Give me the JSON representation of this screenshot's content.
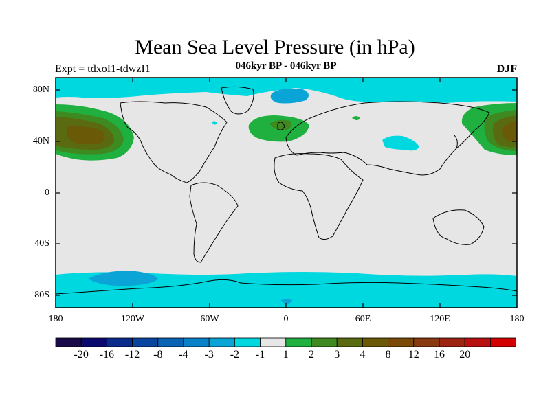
{
  "title": "Mean Sea Level Pressure (in hPa)",
  "subtitle": "046kyr BP - 046kyr BP",
  "experiment_label": "Expt = tdxoI1-tdwzI1",
  "season": "DJF",
  "lat_axis": {
    "labels": [
      "80N",
      "40N",
      "0",
      "40S",
      "80S"
    ]
  },
  "lon_axis": {
    "labels": [
      "180",
      "120W",
      "60W",
      "0",
      "60E",
      "120E",
      "180"
    ]
  },
  "colorbar": {
    "colors": [
      "#1a0a4a",
      "#0a0a6e",
      "#0a2a8c",
      "#0a46a0",
      "#0a64b4",
      "#0a82c8",
      "#0aa5d6",
      "#00d8e0",
      "#e6e6e6",
      "#20b040",
      "#3e8a20",
      "#5a6a10",
      "#6a5a08",
      "#7a4a08",
      "#8a3a10",
      "#9c2410",
      "#b81010",
      "#d40000"
    ],
    "labels": [
      "-20",
      "-16",
      "-12",
      "-8",
      "-4",
      "-3",
      "-2",
      "-1",
      "1",
      "2",
      "3",
      "4",
      "8",
      "12",
      "16",
      "20"
    ]
  },
  "colors": {
    "background": "#e6e6e6",
    "neg_light": "#00d8e0",
    "neg_mid": "#0aa5d6",
    "pos_light": "#20b040",
    "pos_mid": "#3e8a20",
    "pos_dark": "#5a6a10",
    "pos_darker": "#6a5a08"
  }
}
